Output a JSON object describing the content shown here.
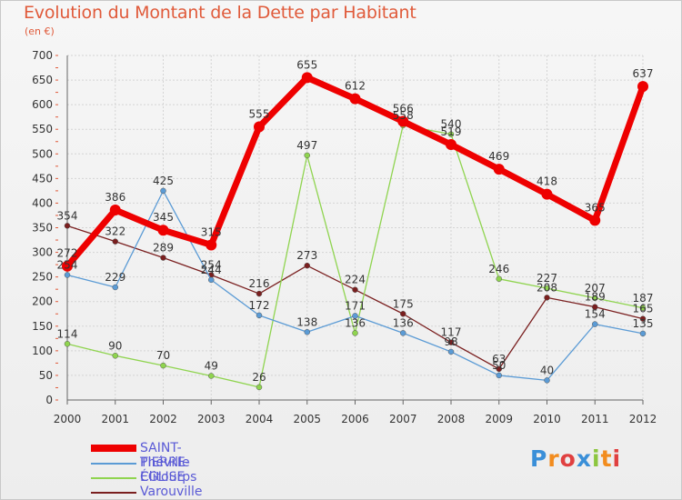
{
  "title": "Evolution du Montant de la Dette par Habitant",
  "subtitle": "(en €)",
  "logo": "Proxiti",
  "chart_data": {
    "type": "line",
    "x": [
      "2000",
      "2001",
      "2002",
      "2003",
      "2004",
      "2005",
      "2006",
      "2007",
      "2008",
      "2009",
      "2010",
      "2011",
      "2012"
    ],
    "ylim": [
      0,
      700
    ],
    "yticks": [
      0,
      50,
      100,
      150,
      200,
      250,
      300,
      350,
      400,
      450,
      500,
      550,
      600,
      650,
      700
    ],
    "grid": true,
    "legend": "bottom-left",
    "series": [
      {
        "name": "SAINT-PIERRE-ÉGLISE",
        "color": "#ee0000",
        "values": [
          272,
          386,
          345,
          315,
          555,
          655,
          612,
          566,
          519,
          469,
          418,
          365,
          637
        ]
      },
      {
        "name": "Théville",
        "color": "#5b9bd5",
        "values": [
          254,
          229,
          425,
          244,
          172,
          138,
          171,
          136,
          98,
          50,
          40,
          154,
          135
        ]
      },
      {
        "name": "Clitourps",
        "color": "#8fd44f",
        "values": [
          114,
          90,
          70,
          49,
          26,
          497,
          136,
          558,
          540,
          246,
          227,
          207,
          187
        ]
      },
      {
        "name": "Varouville",
        "color": "#7a1f1f",
        "values": [
          354,
          322,
          289,
          254,
          216,
          273,
          224,
          175,
          117,
          63,
          208,
          189,
          165
        ]
      }
    ]
  }
}
